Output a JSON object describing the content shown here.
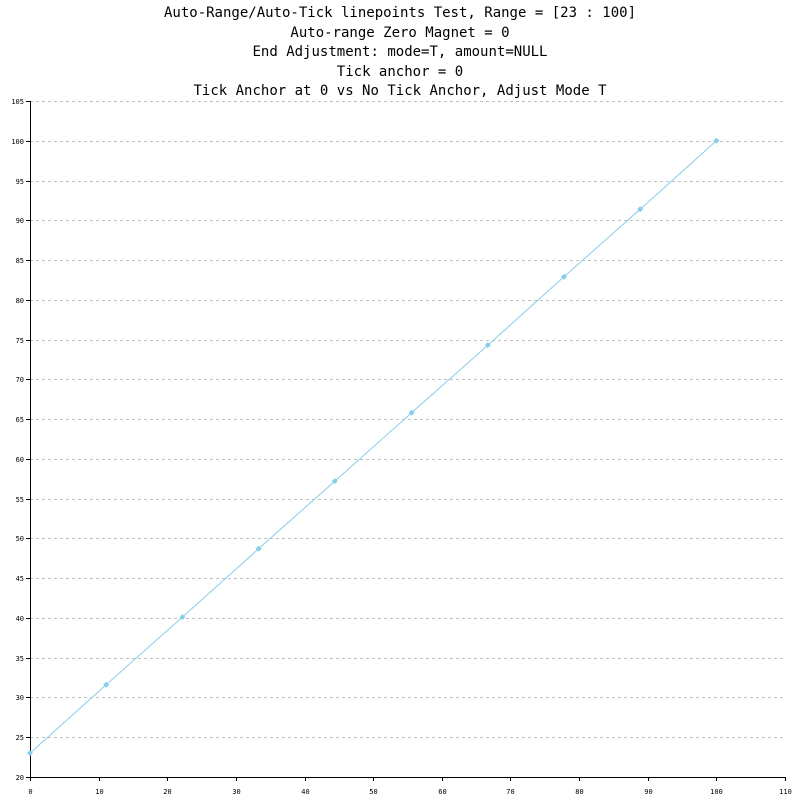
{
  "chart_data": {
    "type": "line",
    "title_lines": [
      "Auto-Range/Auto-Tick linepoints Test, Range = [23 : 100]",
      "Auto-range Zero Magnet = 0",
      "End Adjustment: mode=T, amount=NULL",
      "Tick anchor = 0",
      "Tick Anchor at 0 vs No Tick Anchor, Adjust Mode T"
    ],
    "xlabel": "",
    "ylabel": "",
    "xlim": [
      0,
      110
    ],
    "ylim": [
      20,
      105
    ],
    "x_ticks": [
      0,
      10,
      20,
      30,
      40,
      50,
      60,
      70,
      80,
      90,
      100,
      110
    ],
    "y_ticks": [
      20,
      25,
      30,
      35,
      40,
      45,
      50,
      55,
      60,
      65,
      70,
      75,
      80,
      85,
      90,
      95,
      100,
      105
    ],
    "grid": "horizontal dashed",
    "legend": "none",
    "series": [
      {
        "color": "#87ceeb",
        "x": [
          0,
          11.1,
          22.2,
          33.3,
          44.4,
          55.6,
          66.7,
          77.8,
          88.9,
          100
        ],
        "y": [
          23,
          31.6,
          40.1,
          48.7,
          57.2,
          65.8,
          74.3,
          82.9,
          91.4,
          100
        ]
      }
    ]
  }
}
